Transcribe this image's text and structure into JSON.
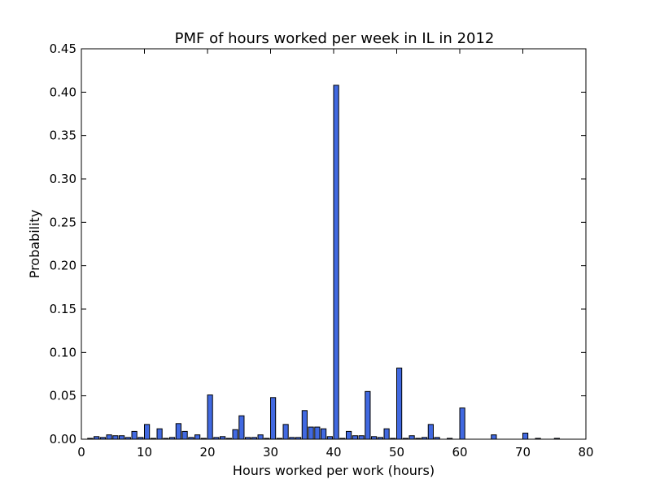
{
  "chart_data": {
    "type": "bar",
    "title": "PMF of hours worked per week in IL in 2012",
    "xlabel": "Hours worked per work (hours)",
    "ylabel": "Probability",
    "xlim": [
      0,
      80
    ],
    "ylim": [
      0,
      0.45
    ],
    "xticks": [
      0,
      10,
      20,
      30,
      40,
      50,
      60,
      70,
      80
    ],
    "yticks": [
      "0.00",
      "0.05",
      "0.10",
      "0.15",
      "0.20",
      "0.25",
      "0.30",
      "0.35",
      "0.40",
      "0.45"
    ],
    "bar_color": "#4169e1",
    "grid": false,
    "x": [
      1,
      2,
      3,
      4,
      5,
      6,
      7,
      8,
      9,
      10,
      11,
      12,
      13,
      14,
      15,
      16,
      17,
      18,
      19,
      20,
      21,
      22,
      23,
      24,
      25,
      26,
      27,
      28,
      29,
      30,
      31,
      32,
      33,
      34,
      35,
      36,
      37,
      38,
      39,
      40,
      41,
      42,
      43,
      44,
      45,
      46,
      47,
      48,
      49,
      50,
      51,
      52,
      53,
      54,
      55,
      56,
      58,
      60,
      65,
      70,
      72,
      75
    ],
    "values": [
      0.001,
      0.003,
      0.002,
      0.005,
      0.004,
      0.004,
      0.002,
      0.009,
      0.002,
      0.017,
      0.001,
      0.012,
      0.001,
      0.002,
      0.018,
      0.009,
      0.002,
      0.005,
      0.001,
      0.051,
      0.002,
      0.003,
      0.001,
      0.011,
      0.027,
      0.002,
      0.002,
      0.005,
      0.001,
      0.048,
      0.001,
      0.017,
      0.002,
      0.002,
      0.033,
      0.014,
      0.014,
      0.012,
      0.003,
      0.408,
      0.001,
      0.009,
      0.004,
      0.004,
      0.055,
      0.003,
      0.002,
      0.012,
      0.001,
      0.082,
      0.001,
      0.004,
      0.001,
      0.002,
      0.017,
      0.002,
      0.001,
      0.036,
      0.005,
      0.007,
      0.001,
      0.001
    ]
  }
}
